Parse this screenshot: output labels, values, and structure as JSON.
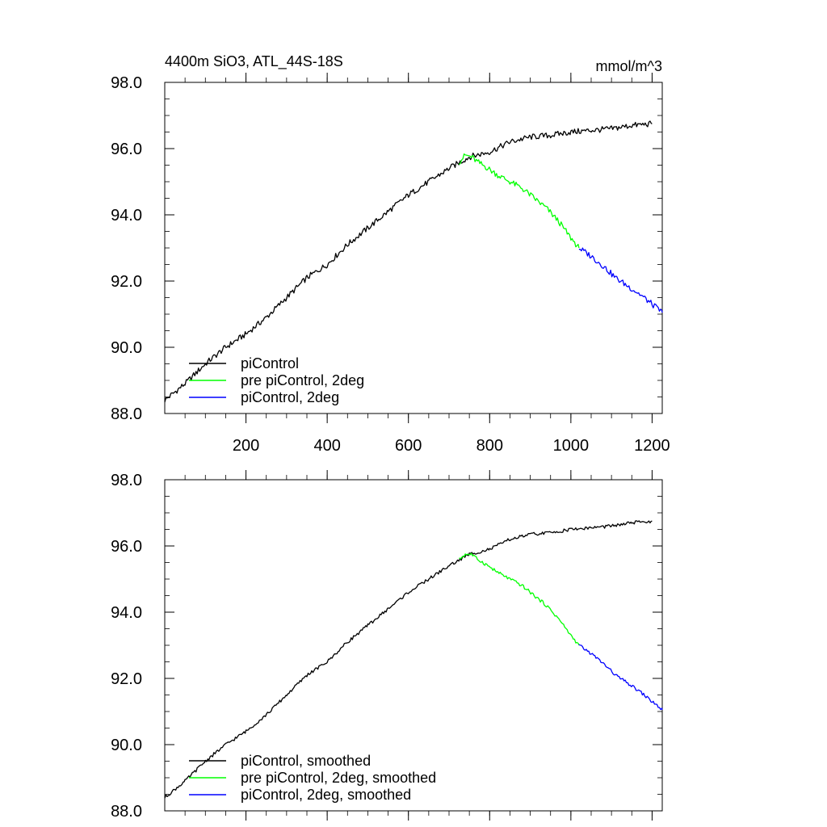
{
  "chart_data": [
    {
      "type": "line",
      "title": "4400m SiO3, ATL_44S-18S",
      "units": "mmol/m^3",
      "xlim": [
        0,
        1225
      ],
      "ylim": [
        88.0,
        98.0
      ],
      "x_ticks": [
        200,
        400,
        600,
        800,
        1000,
        1200
      ],
      "x_tick_labels": [
        "200",
        "400",
        "600",
        "800",
        "1000",
        "1200"
      ],
      "y_ticks": [
        88.0,
        90.0,
        92.0,
        94.0,
        96.0,
        98.0
      ],
      "y_tick_labels": [
        "88.0",
        "90.0",
        "92.0",
        "94.0",
        "96.0",
        "98.0"
      ],
      "legend_position": "bottom-left",
      "series": [
        {
          "name": "piControl",
          "color": "#000000",
          "x": [
            0,
            50,
            100,
            150,
            200,
            250,
            300,
            350,
            400,
            450,
            500,
            550,
            600,
            650,
            700,
            750,
            800,
            850,
            900,
            950,
            1000,
            1050,
            1100,
            1150,
            1200
          ],
          "y": [
            88.4,
            88.9,
            89.5,
            90.0,
            90.4,
            90.9,
            91.5,
            92.1,
            92.5,
            93.1,
            93.6,
            94.1,
            94.6,
            95.0,
            95.4,
            95.75,
            95.9,
            96.2,
            96.35,
            96.4,
            96.5,
            96.55,
            96.6,
            96.7,
            96.75
          ]
        },
        {
          "name": "pre piControl, 2deg",
          "color": "#00ff00",
          "x": [
            725,
            740,
            755,
            770,
            790,
            820,
            850,
            880,
            910,
            940,
            970,
            1000,
            1020
          ],
          "y": [
            95.6,
            95.8,
            95.75,
            95.6,
            95.45,
            95.2,
            95.0,
            94.8,
            94.5,
            94.2,
            93.8,
            93.3,
            93.0
          ]
        },
        {
          "name": "piControl, 2deg",
          "color": "#0000ff",
          "x": [
            1020,
            1050,
            1080,
            1110,
            1140,
            1170,
            1200,
            1225
          ],
          "y": [
            93.0,
            92.75,
            92.45,
            92.1,
            91.85,
            91.6,
            91.3,
            91.05
          ]
        }
      ]
    },
    {
      "type": "line",
      "title": "",
      "xlim": [
        0,
        1225
      ],
      "ylim": [
        88.0,
        98.0
      ],
      "x_ticks": [
        200,
        400,
        600,
        800,
        1000,
        1200
      ],
      "x_tick_labels": [],
      "y_ticks": [
        88.0,
        90.0,
        92.0,
        94.0,
        96.0,
        98.0
      ],
      "y_tick_labels": [
        "88.0",
        "90.0",
        "92.0",
        "94.0",
        "96.0",
        "98.0"
      ],
      "legend_position": "bottom-left",
      "series": [
        {
          "name": "piControl, smoothed",
          "color": "#000000",
          "x": [
            0,
            50,
            100,
            150,
            200,
            250,
            300,
            350,
            400,
            450,
            500,
            550,
            600,
            650,
            700,
            750,
            800,
            850,
            900,
            950,
            1000,
            1050,
            1100,
            1150,
            1200
          ],
          "y": [
            88.4,
            88.9,
            89.5,
            90.0,
            90.4,
            90.9,
            91.5,
            92.1,
            92.5,
            93.1,
            93.6,
            94.1,
            94.6,
            95.0,
            95.4,
            95.75,
            95.9,
            96.2,
            96.35,
            96.4,
            96.5,
            96.55,
            96.6,
            96.7,
            96.75
          ]
        },
        {
          "name": "pre piControl, 2deg, smoothed",
          "color": "#00ff00",
          "x": [
            725,
            740,
            755,
            770,
            790,
            820,
            850,
            880,
            910,
            940,
            970,
            1000,
            1020
          ],
          "y": [
            95.6,
            95.75,
            95.75,
            95.6,
            95.45,
            95.2,
            95.0,
            94.8,
            94.5,
            94.2,
            93.8,
            93.3,
            93.0
          ]
        },
        {
          "name": "piControl, 2deg, smoothed",
          "color": "#0000ff",
          "x": [
            1020,
            1050,
            1080,
            1110,
            1140,
            1170,
            1200,
            1225
          ],
          "y": [
            93.0,
            92.75,
            92.45,
            92.1,
            91.85,
            91.6,
            91.3,
            91.05
          ]
        }
      ]
    }
  ]
}
